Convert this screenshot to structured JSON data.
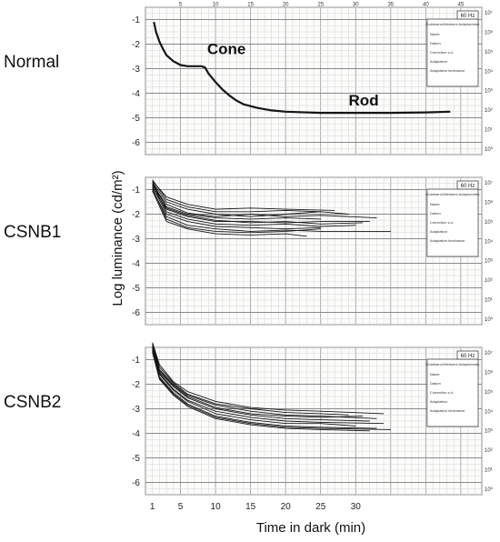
{
  "figure": {
    "ylabel": "Log luminance (cd/m²)",
    "xlabel": "Time in dark (min)",
    "x_ticks": [
      "1",
      "5",
      "10",
      "15",
      "20",
      "25",
      "30"
    ],
    "top_ticks": [
      "5",
      "10",
      "15",
      "20",
      "25",
      "30",
      "35",
      "40",
      "45"
    ],
    "y_ticks": [
      "-1",
      "-2",
      "-3",
      "-4",
      "-5",
      "-6"
    ],
    "right_ticks": [
      "10⁷",
      "10⁶",
      "10⁵",
      "10⁴",
      "10³",
      "10²",
      "10¹",
      "10⁰"
    ],
    "hz_box": "60 Hz",
    "box_title": "Goldmann/Weekers Adaptometer",
    "box_lines": [
      "Name",
      "Datum",
      "Correction s.d.",
      "Adaptation",
      "Adaptation luminance"
    ]
  },
  "chart_data": [
    {
      "type": "line",
      "panel": "Normal",
      "xlabel": "",
      "ylabel": "",
      "xlim": [
        0,
        48
      ],
      "ylim": [
        -6.5,
        -0.5
      ],
      "annotations": [
        {
          "text": "Cone",
          "x": 8.8,
          "y": -2.4
        },
        {
          "text": "Rod",
          "x": 29.0,
          "y": -4.5
        }
      ],
      "series": [
        {
          "values": [
            [
              1.2,
              -1.1
            ],
            [
              1.5,
              -1.5
            ],
            [
              2,
              -1.9
            ],
            [
              2.5,
              -2.2
            ],
            [
              3,
              -2.45
            ],
            [
              4,
              -2.7
            ],
            [
              5,
              -2.85
            ],
            [
              6,
              -2.9
            ],
            [
              7,
              -2.9
            ],
            [
              8,
              -2.9
            ],
            [
              8.5,
              -2.95
            ],
            [
              9,
              -3.2
            ],
            [
              10,
              -3.55
            ],
            [
              11,
              -3.85
            ],
            [
              12,
              -4.1
            ],
            [
              13,
              -4.3
            ],
            [
              14,
              -4.45
            ],
            [
              16,
              -4.6
            ],
            [
              18,
              -4.7
            ],
            [
              20,
              -4.75
            ],
            [
              25,
              -4.8
            ],
            [
              30,
              -4.8
            ],
            [
              35,
              -4.8
            ],
            [
              40,
              -4.78
            ],
            [
              43.5,
              -4.75
            ]
          ]
        }
      ]
    },
    {
      "type": "line",
      "panel": "CSNB1",
      "xlabel": "",
      "ylabel": "",
      "xlim": [
        0,
        48
      ],
      "ylim": [
        -6.5,
        -0.5
      ],
      "series": [
        {
          "values": [
            [
              1,
              -0.6
            ],
            [
              3,
              -1.4
            ],
            [
              6,
              -1.7
            ],
            [
              10,
              -1.9
            ],
            [
              15,
              -1.9
            ],
            [
              20,
              -1.85
            ],
            [
              25,
              -1.9
            ]
          ]
        },
        {
          "values": [
            [
              1,
              -0.7
            ],
            [
              3,
              -1.5
            ],
            [
              6,
              -1.8
            ],
            [
              10,
              -2.0
            ],
            [
              15,
              -2.1
            ],
            [
              20,
              -2.0
            ],
            [
              25,
              -1.9
            ],
            [
              29,
              -2.0
            ]
          ]
        },
        {
          "values": [
            [
              1,
              -0.8
            ],
            [
              3,
              -1.7
            ],
            [
              6,
              -2.0
            ],
            [
              10,
              -2.15
            ],
            [
              15,
              -2.2
            ],
            [
              20,
              -2.15
            ],
            [
              25,
              -2.2
            ]
          ]
        },
        {
          "values": [
            [
              1,
              -0.9
            ],
            [
              3,
              -1.8
            ],
            [
              6,
              -2.1
            ],
            [
              10,
              -2.3
            ],
            [
              15,
              -2.3
            ],
            [
              20,
              -2.35
            ],
            [
              25,
              -2.3
            ],
            [
              32,
              -2.3
            ]
          ]
        },
        {
          "values": [
            [
              1,
              -0.75
            ],
            [
              3,
              -1.9
            ],
            [
              6,
              -2.2
            ],
            [
              10,
              -2.4
            ],
            [
              15,
              -2.45
            ],
            [
              20,
              -2.4
            ],
            [
              25,
              -2.5
            ],
            [
              30,
              -2.45
            ]
          ]
        },
        {
          "values": [
            [
              1,
              -0.85
            ],
            [
              3,
              -2.0
            ],
            [
              6,
              -2.3
            ],
            [
              10,
              -2.5
            ],
            [
              15,
              -2.55
            ],
            [
              20,
              -2.6
            ],
            [
              25,
              -2.55
            ]
          ]
        },
        {
          "values": [
            [
              1,
              -1.0
            ],
            [
              3,
              -2.1
            ],
            [
              6,
              -2.45
            ],
            [
              10,
              -2.6
            ],
            [
              15,
              -2.7
            ],
            [
              20,
              -2.65
            ],
            [
              25,
              -2.7
            ],
            [
              35,
              -2.7
            ]
          ]
        },
        {
          "values": [
            [
              1,
              -0.95
            ],
            [
              3,
              -2.2
            ],
            [
              6,
              -2.55
            ],
            [
              10,
              -2.7
            ],
            [
              15,
              -2.75
            ],
            [
              20,
              -2.7
            ],
            [
              25,
              -2.6
            ]
          ]
        },
        {
          "values": [
            [
              1,
              -0.8
            ],
            [
              3,
              -1.6
            ],
            [
              6,
              -1.95
            ],
            [
              10,
              -2.1
            ],
            [
              15,
              -2.0
            ],
            [
              20,
              -2.1
            ],
            [
              25,
              -2.05
            ],
            [
              33,
              -2.15
            ]
          ]
        },
        {
          "values": [
            [
              1,
              -0.7
            ],
            [
              3,
              -1.75
            ],
            [
              6,
              -2.05
            ],
            [
              10,
              -2.25
            ],
            [
              15,
              -2.35
            ],
            [
              20,
              -2.3
            ],
            [
              25,
              -2.4
            ],
            [
              31,
              -2.35
            ]
          ]
        },
        {
          "values": [
            [
              1,
              -0.65
            ],
            [
              3,
              -1.3
            ],
            [
              6,
              -1.6
            ],
            [
              10,
              -1.8
            ],
            [
              15,
              -1.75
            ],
            [
              20,
              -1.8
            ],
            [
              27,
              -1.85
            ]
          ]
        },
        {
          "values": [
            [
              1,
              -1.05
            ],
            [
              3,
              -2.3
            ],
            [
              6,
              -2.6
            ],
            [
              10,
              -2.8
            ],
            [
              15,
              -2.85
            ],
            [
              20,
              -2.8
            ],
            [
              23,
              -2.9
            ]
          ]
        }
      ]
    },
    {
      "type": "line",
      "panel": "CSNB2",
      "xlabel": "",
      "ylabel": "",
      "xlim": [
        0,
        48
      ],
      "ylim": [
        -6.5,
        -0.5
      ],
      "series": [
        {
          "values": [
            [
              1,
              -0.3
            ],
            [
              2,
              -1.2
            ],
            [
              4,
              -1.9
            ],
            [
              6,
              -2.3
            ],
            [
              10,
              -2.7
            ],
            [
              15,
              -2.95
            ],
            [
              20,
              -3.05
            ],
            [
              25,
              -3.1
            ],
            [
              34,
              -3.2
            ]
          ]
        },
        {
          "values": [
            [
              1,
              -0.4
            ],
            [
              2,
              -1.4
            ],
            [
              4,
              -2.0
            ],
            [
              6,
              -2.45
            ],
            [
              10,
              -2.85
            ],
            [
              15,
              -3.1
            ],
            [
              20,
              -3.25
            ],
            [
              25,
              -3.3
            ],
            [
              33,
              -3.4
            ]
          ]
        },
        {
          "values": [
            [
              1,
              -0.5
            ],
            [
              2,
              -1.5
            ],
            [
              4,
              -2.1
            ],
            [
              6,
              -2.55
            ],
            [
              10,
              -3.0
            ],
            [
              15,
              -3.25
            ],
            [
              20,
              -3.4
            ],
            [
              25,
              -3.45
            ],
            [
              32,
              -3.5
            ]
          ]
        },
        {
          "values": [
            [
              1,
              -0.45
            ],
            [
              2,
              -1.55
            ],
            [
              4,
              -2.2
            ],
            [
              6,
              -2.65
            ],
            [
              10,
              -3.1
            ],
            [
              15,
              -3.35
            ],
            [
              20,
              -3.5
            ],
            [
              25,
              -3.55
            ],
            [
              34,
              -3.6
            ]
          ]
        },
        {
          "values": [
            [
              1,
              -0.55
            ],
            [
              2,
              -1.6
            ],
            [
              4,
              -2.25
            ],
            [
              6,
              -2.7
            ],
            [
              10,
              -3.2
            ],
            [
              15,
              -3.45
            ],
            [
              20,
              -3.6
            ],
            [
              25,
              -3.6
            ],
            [
              30,
              -3.7
            ]
          ]
        },
        {
          "values": [
            [
              1,
              -0.6
            ],
            [
              2,
              -1.7
            ],
            [
              4,
              -2.35
            ],
            [
              6,
              -2.8
            ],
            [
              10,
              -3.3
            ],
            [
              15,
              -3.55
            ],
            [
              20,
              -3.7
            ],
            [
              25,
              -3.75
            ],
            [
              33,
              -3.8
            ]
          ]
        },
        {
          "values": [
            [
              1,
              -0.5
            ],
            [
              2,
              -1.45
            ],
            [
              4,
              -2.05
            ],
            [
              6,
              -2.5
            ],
            [
              10,
              -2.95
            ],
            [
              15,
              -3.2
            ],
            [
              20,
              -3.3
            ],
            [
              25,
              -3.35
            ],
            [
              31,
              -3.3
            ]
          ]
        },
        {
          "values": [
            [
              1,
              -0.65
            ],
            [
              2,
              -1.75
            ],
            [
              4,
              -2.4
            ],
            [
              6,
              -2.85
            ],
            [
              10,
              -3.35
            ],
            [
              15,
              -3.6
            ],
            [
              20,
              -3.75
            ],
            [
              25,
              -3.8
            ],
            [
              35,
              -3.85
            ]
          ]
        },
        {
          "values": [
            [
              1,
              -0.35
            ],
            [
              2,
              -1.3
            ],
            [
              4,
              -1.95
            ],
            [
              6,
              -2.4
            ],
            [
              10,
              -2.8
            ],
            [
              15,
              -3.0
            ],
            [
              20,
              -3.15
            ],
            [
              25,
              -3.2
            ],
            [
              29,
              -3.25
            ]
          ]
        },
        {
          "values": [
            [
              1,
              -0.7
            ],
            [
              2,
              -1.8
            ],
            [
              4,
              -2.45
            ],
            [
              6,
              -2.9
            ],
            [
              10,
              -3.4
            ],
            [
              15,
              -3.65
            ],
            [
              20,
              -3.8
            ],
            [
              25,
              -3.85
            ],
            [
              32,
              -3.9
            ]
          ]
        }
      ]
    }
  ]
}
